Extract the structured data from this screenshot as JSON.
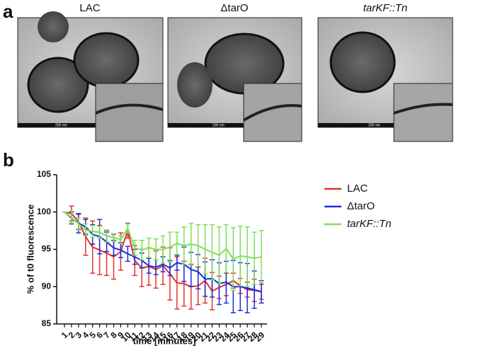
{
  "figure": {
    "panel_labels": [
      "a",
      "b"
    ],
    "images": [
      {
        "title": "LAC",
        "scale_bar": "200 nm"
      },
      {
        "title": "ΔtarO",
        "scale_bar": "200 nm"
      },
      {
        "title": "tarKF::Tn",
        "scale_bar": "200 nm"
      }
    ]
  },
  "chart_data": {
    "type": "line",
    "y_label": "% of t0 fluorescence",
    "x_label": "time [minutes]",
    "categories": [
      "1",
      "2",
      "3",
      "4",
      "5",
      "6",
      "7",
      "8",
      "9",
      "10",
      "11",
      "12",
      "13",
      "14",
      "15",
      "16",
      "17",
      "18",
      "19",
      "20",
      "21",
      "22",
      "23",
      "24",
      "25",
      "26",
      "27",
      "28",
      "29"
    ],
    "ylim": [
      85,
      105
    ],
    "yticks": [
      85,
      90,
      95,
      100,
      105
    ],
    "series": [
      {
        "name": "LAC",
        "color": "#e8302a",
        "values": [
          100,
          99.8,
          98.7,
          96.7,
          95.3,
          94.9,
          94.5,
          94.0,
          94.7,
          97.5,
          93.5,
          92.5,
          92.7,
          92.3,
          92.8,
          91.7,
          90.5,
          90.4,
          90.0,
          90.1,
          90.8,
          89.4,
          89.9,
          90.3,
          90.8,
          90.1,
          89.6,
          89.5,
          89.3
        ],
        "errors": [
          0,
          1,
          1,
          2.5,
          3.5,
          3.3,
          3,
          3,
          2.5,
          1,
          2,
          2.5,
          2.5,
          2.5,
          2.5,
          3.5,
          3.5,
          3,
          3,
          2.5,
          3,
          2.5,
          1.5,
          1.5,
          1,
          1,
          1,
          1.5,
          1
        ]
      },
      {
        "name": "ΔtarO",
        "color": "#1a2fe0",
        "values": [
          100,
          99.2,
          98.5,
          98.0,
          97.0,
          96.7,
          96.0,
          95.2,
          94.9,
          94.4,
          94.0,
          93.5,
          92.8,
          92.6,
          93.0,
          92.5,
          93.2,
          93.0,
          92.3,
          92.0,
          91.0,
          91.1,
          90.4,
          90.6,
          90.0,
          90.0,
          89.8,
          89.6,
          89.3
        ],
        "errors": [
          0,
          0.8,
          1.3,
          1,
          1.3,
          2.3,
          1.3,
          1,
          1,
          1,
          1,
          1,
          1,
          1,
          1,
          1,
          1,
          2.3,
          2.3,
          2.3,
          2.3,
          2.5,
          2.8,
          2.8,
          3.5,
          3.2,
          3.3,
          2.5,
          1.5
        ]
      },
      {
        "name": "tarKF::Tn",
        "color": "#7de05a",
        "values": [
          100,
          99.3,
          98.4,
          97.6,
          97.4,
          97.3,
          96.8,
          96.6,
          96.3,
          97.8,
          95.2,
          94.9,
          95.2,
          95.0,
          95.0,
          95.3,
          95.8,
          95.5,
          95.7,
          95.5,
          95.0,
          94.6,
          94.2,
          95.1,
          93.7,
          94.1,
          94.0,
          93.8,
          94.0
        ],
        "errors": [
          0,
          0.8,
          0.8,
          0.8,
          0.8,
          0.8,
          0.8,
          0.5,
          0.5,
          0.6,
          1,
          1.3,
          1.3,
          1.4,
          1.8,
          2,
          1.5,
          2.5,
          2.8,
          2.8,
          3.3,
          3.7,
          3.8,
          3.2,
          4.2,
          4,
          4,
          3.5,
          3.5
        ]
      }
    ]
  }
}
